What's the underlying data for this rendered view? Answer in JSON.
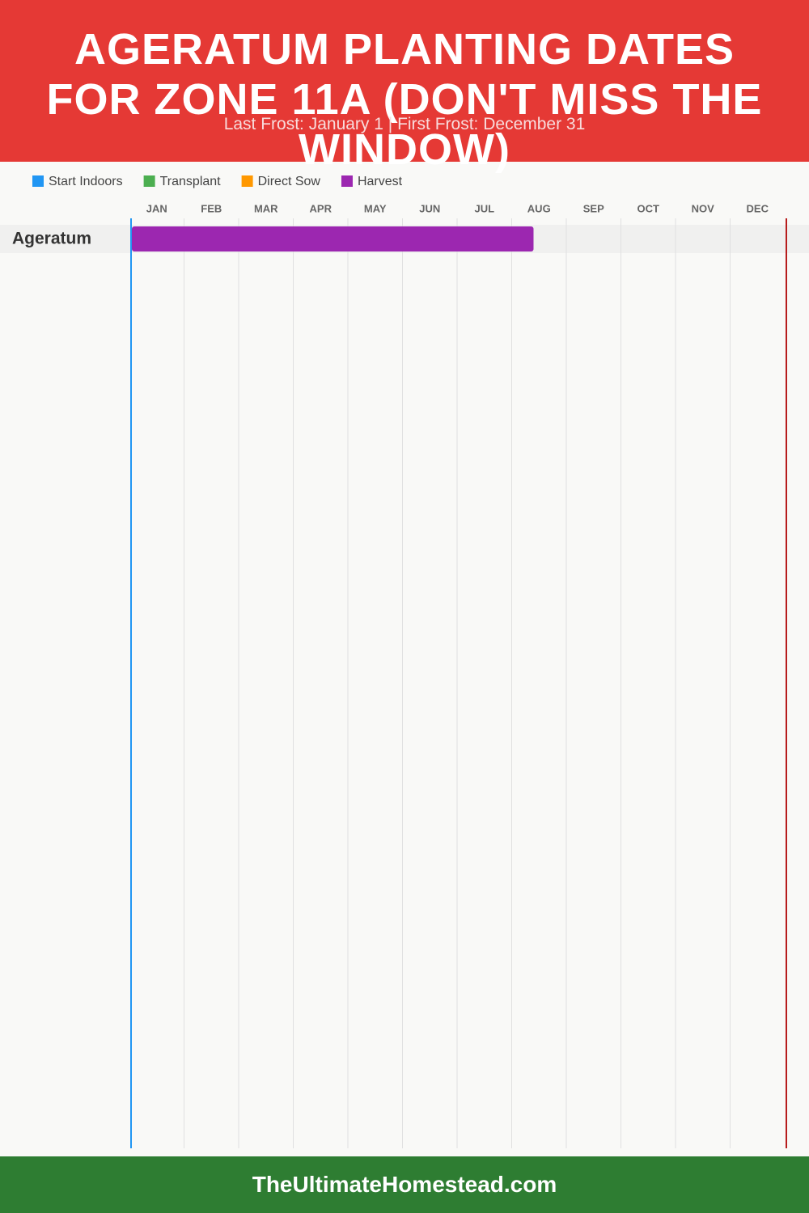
{
  "chart_data": {
    "type": "gantt",
    "title": "AGERATUM PLANTING DATES FOR ZONE 11A (DON'T MISS THE WINDOW)",
    "subtitle": "Last Frost: January 1 | First Frost: December 31",
    "series": [
      {
        "name": "Start Indoors",
        "color": "#2196f3"
      },
      {
        "name": "Transplant",
        "color": "#4caf50"
      },
      {
        "name": "Direct Sow",
        "color": "#ff9800"
      },
      {
        "name": "Harvest",
        "color": "#9c27b0"
      }
    ],
    "categories": [
      "JAN",
      "FEB",
      "MAR",
      "APR",
      "MAY",
      "JUN",
      "JUL",
      "AUG",
      "SEP",
      "OCT",
      "NOV",
      "DEC"
    ],
    "xlim": [
      0,
      12
    ],
    "rows": [
      {
        "name": "Ageratum",
        "bars": [
          {
            "series": 3,
            "start": 0,
            "end": 7.4
          }
        ]
      }
    ],
    "markers": [
      {
        "value": 0,
        "color": "#2196f3"
      },
      {
        "value": 12,
        "color": "#b71c1c"
      }
    ],
    "footer": "TheUltimateHomestead.com"
  }
}
